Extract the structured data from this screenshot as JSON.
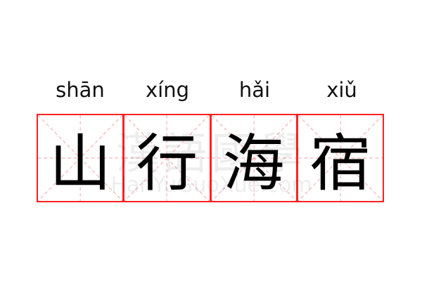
{
  "characters": [
    {
      "pinyin": "shān",
      "hanzi": "山"
    },
    {
      "pinyin": "xíng",
      "hanzi": "行"
    },
    {
      "pinyin": "hǎi",
      "hanzi": "海"
    },
    {
      "pinyin": "xiǔ",
      "hanzi": "宿"
    }
  ],
  "watermark": {
    "chinese": "漢語國學",
    "latin": "HanYuGuoXue.com"
  },
  "colors": {
    "grid_border": "#ff2222",
    "guide_lines": "#f6a0a0",
    "text": "#000000"
  }
}
